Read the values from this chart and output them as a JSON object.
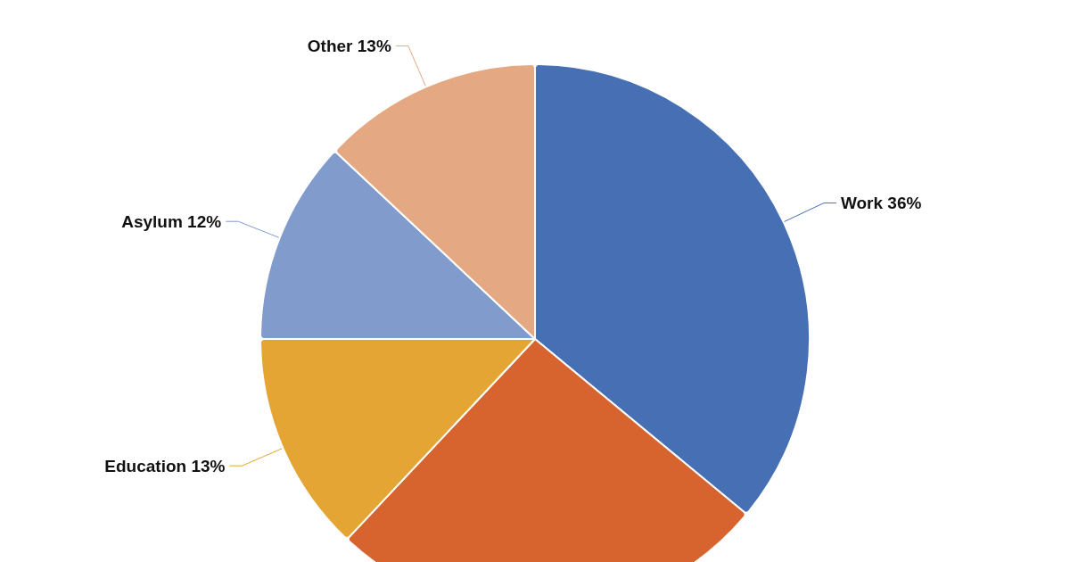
{
  "chart_data": {
    "type": "pie",
    "categories": [
      "Work",
      null,
      "Education",
      "Asylum",
      "Other"
    ],
    "values": [
      36,
      26,
      13,
      12,
      13
    ],
    "value_labels": [
      "36%",
      null,
      "13%",
      "12%",
      "13%"
    ],
    "colors": [
      "#466fb4",
      "#d7642e",
      "#e4a534",
      "#819bcc",
      "#e4a983"
    ]
  }
}
